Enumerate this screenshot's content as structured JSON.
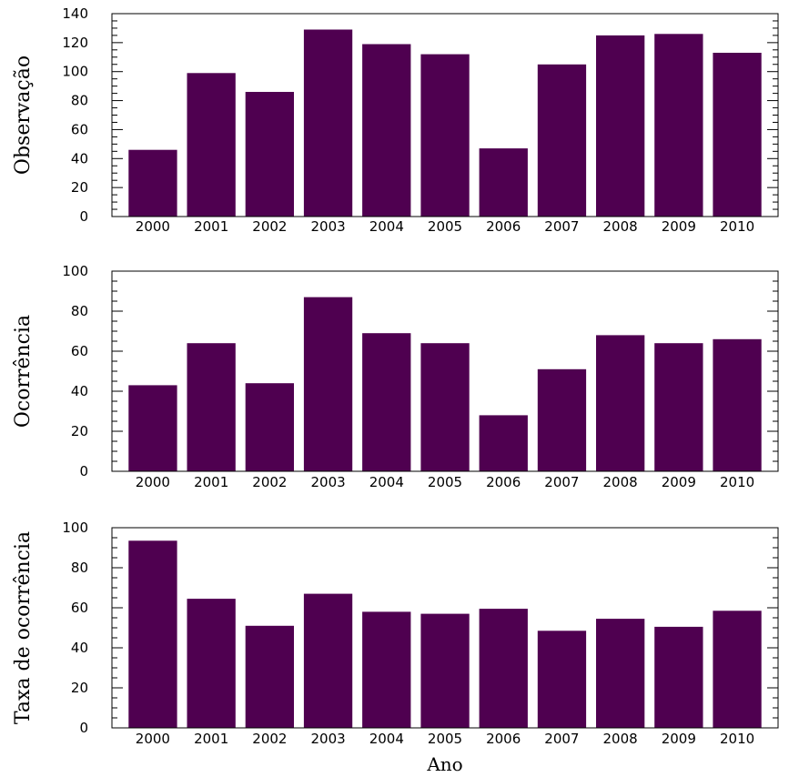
{
  "chart_data": [
    {
      "type": "bar",
      "categories": [
        "2000",
        "2001",
        "2002",
        "2003",
        "2004",
        "2005",
        "2006",
        "2007",
        "2008",
        "2009",
        "2010"
      ],
      "values": [
        46,
        99,
        86,
        129,
        119,
        112,
        47,
        105,
        125,
        126,
        113
      ],
      "title": "",
      "xlabel": "",
      "ylabel": "Observação",
      "ylim": [
        0,
        140
      ],
      "yticks": [
        0,
        20,
        40,
        60,
        80,
        100,
        120,
        140
      ],
      "grid": false
    },
    {
      "type": "bar",
      "categories": [
        "2000",
        "2001",
        "2002",
        "2003",
        "2004",
        "2005",
        "2006",
        "2007",
        "2008",
        "2009",
        "2010"
      ],
      "values": [
        43,
        64,
        44,
        87,
        69,
        64,
        28,
        51,
        68,
        64,
        66
      ],
      "title": "",
      "xlabel": "",
      "ylabel": "Ocorrência",
      "ylim": [
        0,
        100
      ],
      "yticks": [
        0,
        20,
        40,
        60,
        80,
        100
      ],
      "grid": false
    },
    {
      "type": "bar",
      "categories": [
        "2000",
        "2001",
        "2002",
        "2003",
        "2004",
        "2005",
        "2006",
        "2007",
        "2008",
        "2009",
        "2010"
      ],
      "values": [
        93.5,
        64.5,
        51,
        67,
        58,
        57,
        59.5,
        48.5,
        54.5,
        50.5,
        58.5
      ],
      "title": "",
      "xlabel": "Ano",
      "ylabel": "Taxa de ocorrência",
      "ylim": [
        0,
        100
      ],
      "yticks": [
        0,
        20,
        40,
        60,
        80,
        100
      ],
      "grid": false
    }
  ],
  "colors": {
    "bar": "#4f0050",
    "axis": "#000000"
  }
}
